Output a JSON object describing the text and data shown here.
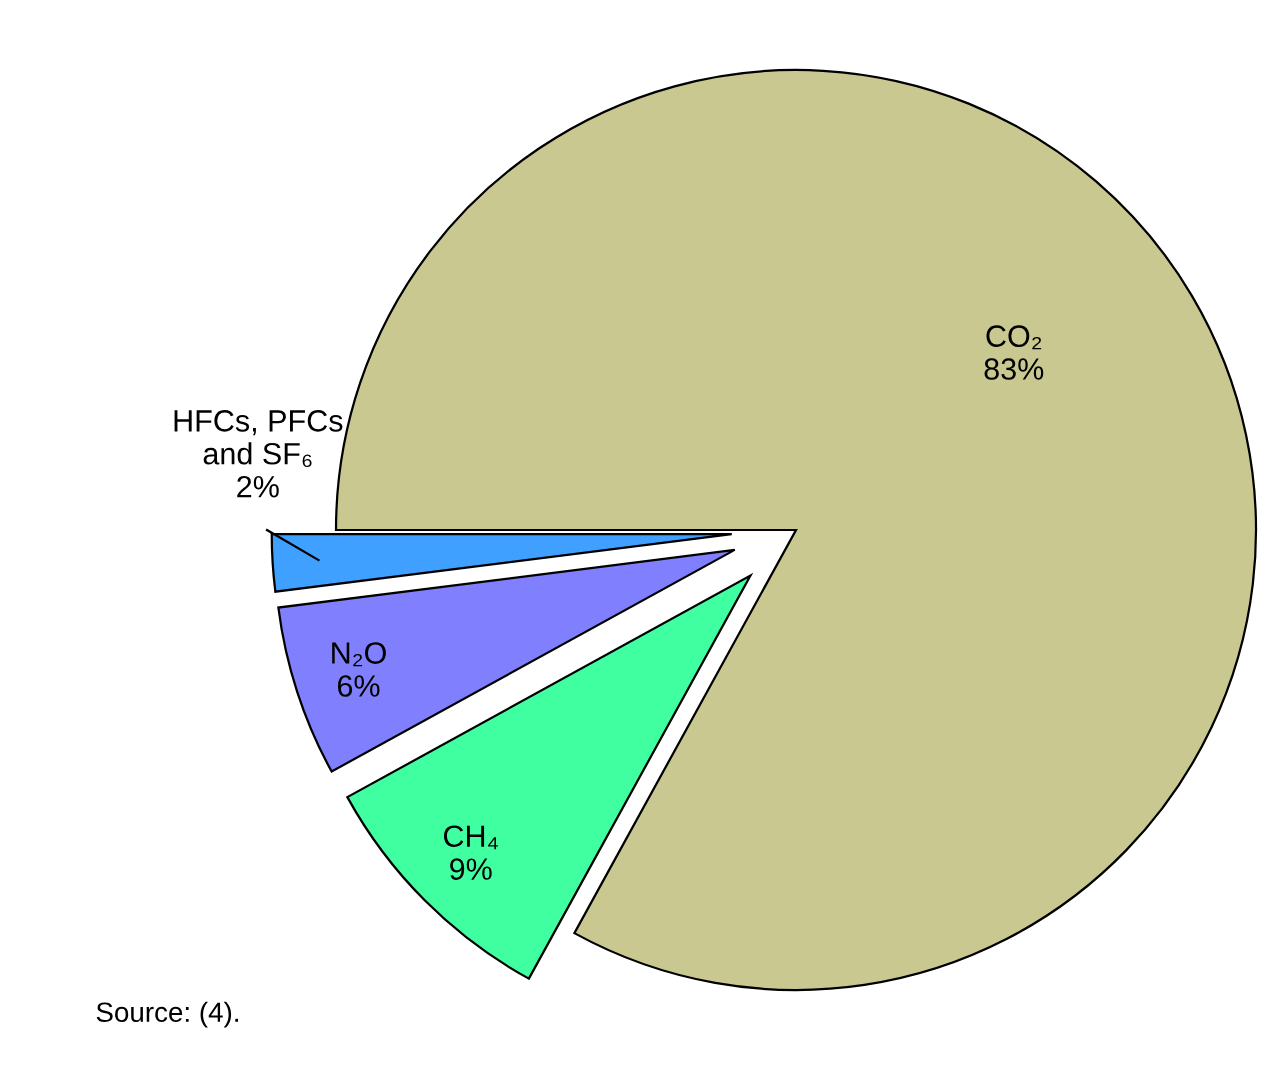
{
  "chart_data": {
    "type": "pie",
    "categories": [
      "CO₂",
      "CH₄",
      "N₂O",
      "HFCs, PFCs\nand SF₆"
    ],
    "values": [
      83,
      9,
      6,
      2
    ],
    "value_labels": [
      "83%",
      "9%",
      "6%",
      "2%"
    ],
    "colors": [
      "#c8c890",
      "#40ffa0",
      "#8080ff",
      "#40a0ff"
    ],
    "annotations": [
      "Source: (4)."
    ]
  }
}
